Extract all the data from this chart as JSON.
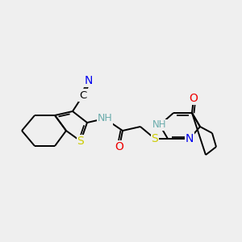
{
  "background_color": "#efefef",
  "atom_colors": {
    "C": "#000000",
    "N": "#0000ee",
    "O": "#ee0000",
    "S": "#cccc00",
    "NH": "#6aacac"
  },
  "bond_color": "#000000",
  "lw": 1.4
}
